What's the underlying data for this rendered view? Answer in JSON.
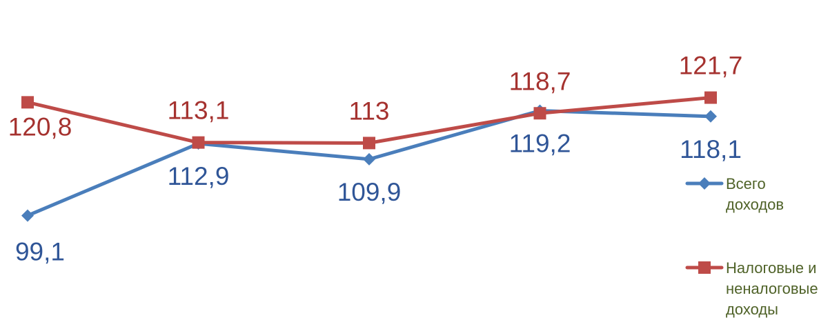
{
  "chart_data": {
    "type": "line",
    "categories": [
      "",
      "",
      "",
      "",
      ""
    ],
    "series": [
      {
        "name": " Всего доходов",
        "legend_lines": [
          " Всего",
          "доходов"
        ],
        "values": [
          99.1,
          112.9,
          109.9,
          119.2,
          118.1
        ],
        "labels": [
          "99,1",
          "112,9",
          "109,9",
          "119,2",
          "118,1"
        ],
        "color": "#4A7EBB",
        "label_color": "#2F5597",
        "marker": "diamond"
      },
      {
        "name": "Налоговые и неналоговые доходы",
        "legend_lines": [
          "Налоговые и",
          "неналоговые",
          "доходы"
        ],
        "values": [
          120.8,
          113.1,
          113.0,
          118.7,
          121.7
        ],
        "labels": [
          "120,8",
          "113,1",
          "113",
          "118,7",
          "121,7"
        ],
        "color": "#BE4B48",
        "label_color": "#A5322F",
        "marker": "square"
      }
    ],
    "ylim": [
      79.1,
      140.4
    ],
    "grid": false,
    "axes_visible": false,
    "legend_position": "right"
  },
  "legend": {
    "text_color": "#4F6228"
  }
}
